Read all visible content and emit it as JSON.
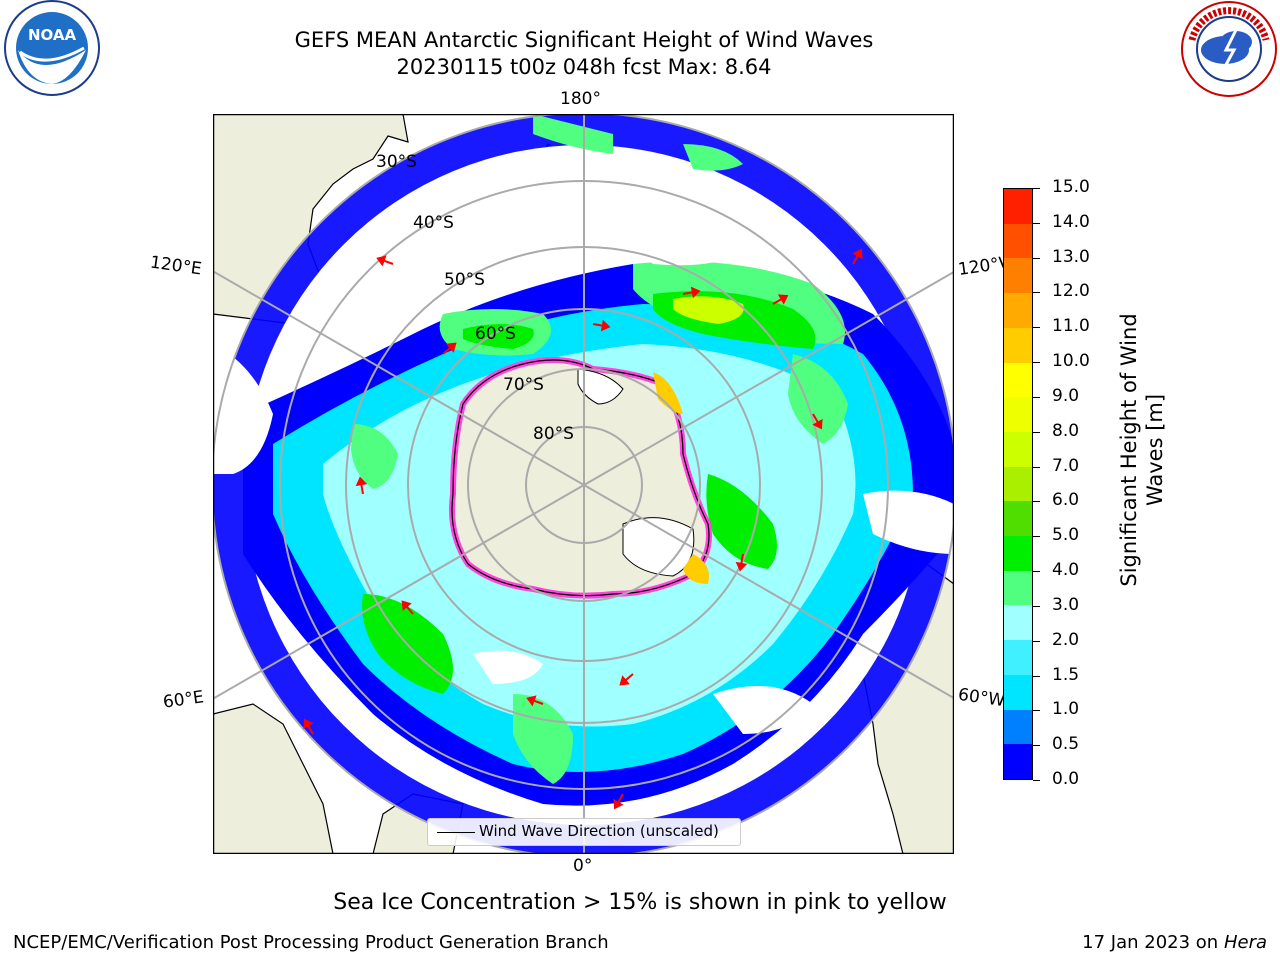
{
  "header": {
    "title_line1": "GEFS MEAN Antarctic Significant Height of Wind Waves",
    "title_line2": "20230115 t00z 048h fcst   Max: 8.64"
  },
  "logos": {
    "left": {
      "name": "NOAA",
      "ring_text": "NATIONAL OCEANIC AND ATMOSPHERIC ADMINISTRATION",
      "bottom_text": "U.S. DEPARTMENT OF COMMERCE"
    },
    "right": {
      "name": "NATIONAL WEATHER SERVICE",
      "ring_text": "NATIONAL WEATHER SERVICE"
    }
  },
  "map": {
    "projection": "south-polar-stereographic",
    "lon_labels": {
      "top": "180°",
      "bottom": "0°",
      "upper_left": "120°E",
      "upper_right": "120°W",
      "lower_left": "60°E",
      "lower_right": "60°W"
    },
    "lat_labels": [
      "30°S",
      "40°S",
      "50°S",
      "60°S",
      "70°S",
      "80°S"
    ],
    "legend_label": "Wind Wave Direction (unscaled)",
    "colors": {
      "land": "#eeeedd",
      "ice_edge": "#ff44dd",
      "arrow": "#ff0000"
    }
  },
  "colorbar": {
    "label": "Significant Height of Wind Waves [m]",
    "label_line1": "Significant Height of Wind",
    "label_line2": "Waves [m]",
    "ticks": [
      "0.0",
      "0.5",
      "1.0",
      "1.5",
      "2.0",
      "3.0",
      "4.0",
      "5.0",
      "6.0",
      "7.0",
      "8.0",
      "9.0",
      "10.0",
      "11.0",
      "12.0",
      "13.0",
      "14.0",
      "15.0"
    ],
    "colors": [
      "#0000ff",
      "#0080ff",
      "#00e5ff",
      "#40f0ff",
      "#a0ffff",
      "#50ff80",
      "#00ee00",
      "#50dd00",
      "#aaee00",
      "#ccff00",
      "#eeff00",
      "#ffff00",
      "#ffcc00",
      "#ffaa00",
      "#ff8000",
      "#ff5000",
      "#ff2000"
    ]
  },
  "caption": "Sea Ice Concentration > 15% is shown in pink to yellow",
  "footer": {
    "left": "NCEP/EMC/Verification Post Processing Product Generation Branch",
    "right_date": "17 Jan 2023 on ",
    "right_host": "Hera"
  }
}
